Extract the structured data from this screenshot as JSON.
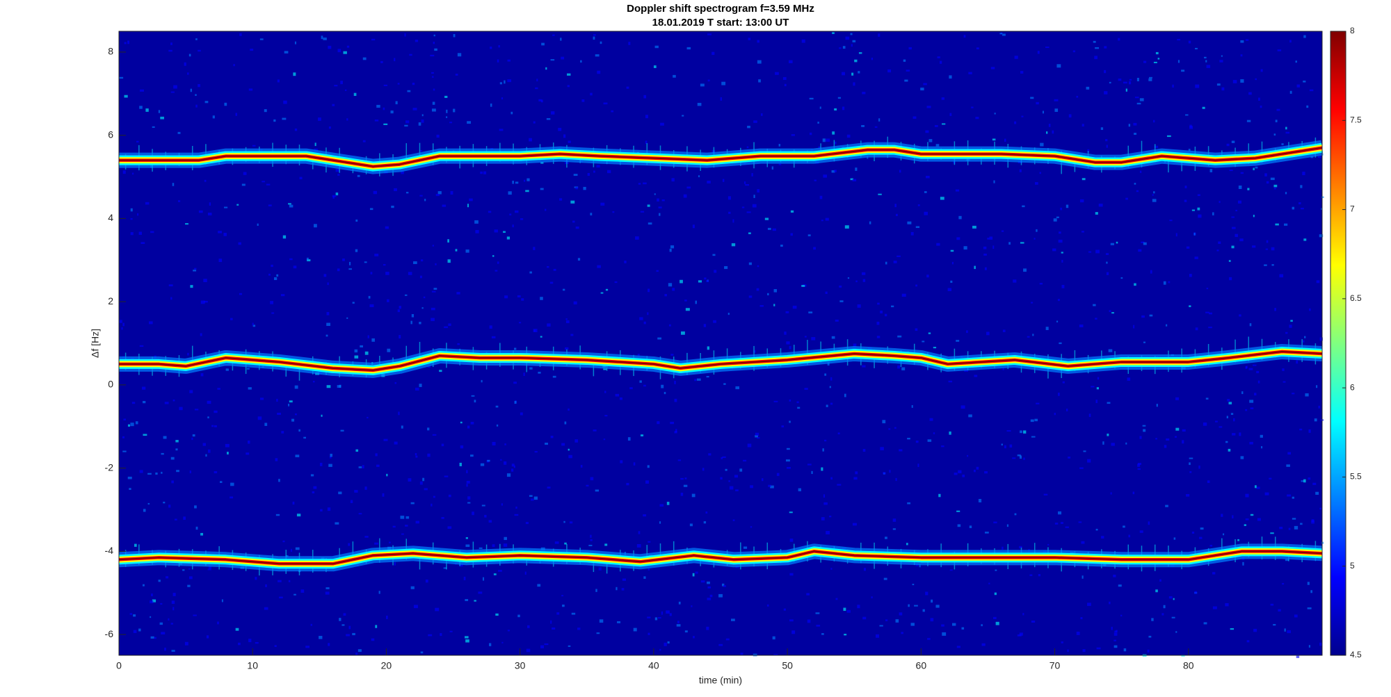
{
  "chart_data": {
    "type": "spectrogram",
    "title": "Doppler shift spectrogram f=3.59 MHz",
    "subtitle": "18.01.2019   T start: 13:00 UT",
    "x_label": "time (min)",
    "y_label": "Δf [Hz]",
    "xlim": [
      0,
      90
    ],
    "xticks": [
      0,
      10,
      20,
      30,
      40,
      50,
      60,
      70,
      80
    ],
    "ylim": [
      -6.5,
      8.5
    ],
    "yticks": [
      -6,
      -4,
      -2,
      0,
      2,
      4,
      6,
      8
    ],
    "clim": [
      4.5,
      8
    ],
    "cticks": [
      4.5,
      5,
      5.5,
      6,
      6.5,
      7,
      7.5,
      8
    ],
    "background": "#0000a0",
    "colormap": [
      "#00008f",
      "#0000ff",
      "#0080ff",
      "#00ffff",
      "#80ff80",
      "#ffff00",
      "#ff8000",
      "#ff0000",
      "#800000"
    ],
    "series": [
      {
        "x": [
          0,
          3,
          6,
          8,
          11,
          14,
          17,
          19,
          21,
          24,
          27,
          30,
          33,
          36,
          40,
          44,
          48,
          52,
          56,
          58,
          60,
          63,
          66,
          70,
          73,
          75,
          78,
          82,
          85,
          87,
          90
        ],
        "values": [
          5.4,
          5.4,
          5.4,
          5.5,
          5.5,
          5.5,
          5.35,
          5.25,
          5.3,
          5.5,
          5.5,
          5.5,
          5.55,
          5.5,
          5.45,
          5.4,
          5.5,
          5.5,
          5.65,
          5.65,
          5.55,
          5.55,
          5.55,
          5.5,
          5.35,
          5.35,
          5.5,
          5.4,
          5.45,
          5.55,
          5.7
        ]
      },
      {
        "x": [
          0,
          3,
          5,
          8,
          12,
          16,
          19,
          21,
          24,
          27,
          30,
          35,
          40,
          42,
          45,
          50,
          55,
          58,
          60,
          62,
          67,
          71,
          75,
          80,
          83,
          87,
          90
        ],
        "values": [
          0.5,
          0.5,
          0.45,
          0.65,
          0.55,
          0.4,
          0.35,
          0.45,
          0.7,
          0.65,
          0.65,
          0.6,
          0.5,
          0.4,
          0.5,
          0.6,
          0.75,
          0.7,
          0.65,
          0.5,
          0.6,
          0.45,
          0.55,
          0.55,
          0.65,
          0.8,
          0.75
        ]
      },
      {
        "x": [
          0,
          3,
          8,
          12,
          16,
          19,
          22,
          26,
          30,
          35,
          39,
          43,
          46,
          50,
          52,
          55,
          60,
          65,
          70,
          75,
          80,
          82,
          84,
          87,
          90
        ],
        "values": [
          -4.2,
          -4.15,
          -4.2,
          -4.3,
          -4.3,
          -4.1,
          -4.05,
          -4.15,
          -4.1,
          -4.15,
          -4.25,
          -4.1,
          -4.2,
          -4.15,
          -4.0,
          -4.1,
          -4.15,
          -4.15,
          -4.15,
          -4.2,
          -4.2,
          -4.1,
          -4.0,
          -4.0,
          -4.05
        ]
      }
    ]
  }
}
